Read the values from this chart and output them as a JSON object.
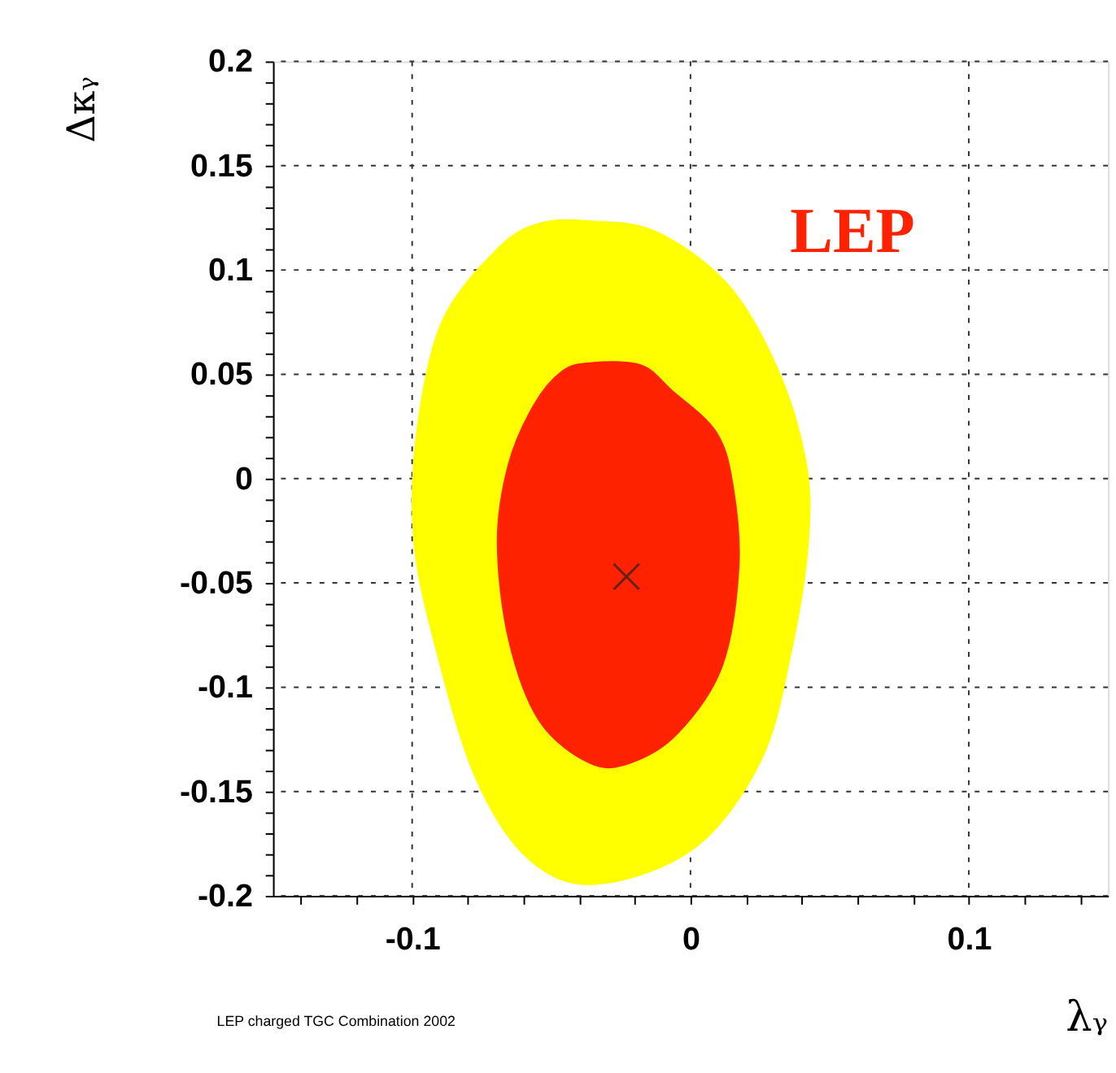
{
  "chart_data": {
    "type": "area",
    "xlabel": "λᵧ",
    "ylabel": "Δκᵧ",
    "annotations": [
      "LEP",
      "LEP charged TGC Combination 2002"
    ],
    "series": [
      {
        "type": "area",
        "color": "#ffff00",
        "x": [
          -0.036,
          -0.0125,
          0.013,
          0.0305,
          0.041,
          0.042,
          0.036,
          0.025,
          0.001,
          -0.034,
          -0.058,
          -0.077,
          -0.091,
          -0.099,
          -0.098,
          -0.089,
          -0.069,
          -0.054
        ],
        "values": [
          0.123,
          0.118,
          0.093,
          0.054,
          0.009,
          -0.03,
          -0.082,
          -0.135,
          -0.177,
          -0.194,
          -0.182,
          -0.143,
          -0.082,
          -0.03,
          0.022,
          0.075,
          0.11,
          0.122
        ]
      },
      {
        "type": "area",
        "color": "#ff2200",
        "x": [
          -0.036,
          -0.018,
          -0.007,
          0.009,
          0.015,
          0.017,
          0.011,
          -0.005,
          -0.022,
          -0.036,
          -0.054,
          -0.065,
          -0.069,
          -0.065,
          -0.056,
          -0.046
        ],
        "values": [
          0.055,
          0.054,
          0.042,
          0.022,
          -0.004,
          -0.043,
          -0.09,
          -0.122,
          -0.136,
          -0.136,
          -0.116,
          -0.077,
          -0.03,
          0.007,
          0.035,
          0.051
        ]
      },
      {
        "type": "scatter",
        "marker": "cross",
        "color": "#222222",
        "x": [
          -0.023
        ],
        "values": [
          -0.047
        ]
      }
    ],
    "xlim": [
      -0.15,
      0.15
    ],
    "xticks": [
      {
        "value": -0.14,
        "label": null
      },
      {
        "value": -0.12,
        "label": null
      },
      -0.1,
      {
        "value": -0.08,
        "label": null
      },
      {
        "value": -0.06,
        "label": null
      },
      {
        "value": -0.04,
        "label": null
      },
      {
        "value": -0.02,
        "label": null
      },
      0,
      {
        "value": 0.02,
        "label": null
      },
      {
        "value": 0.04,
        "label": null
      },
      {
        "value": 0.06,
        "label": null
      },
      {
        "value": 0.08,
        "label": null
      },
      0.1,
      {
        "value": 0.12,
        "label": null
      },
      {
        "value": 0.14,
        "label": null
      }
    ],
    "ylim": [
      -0.2,
      0.2
    ],
    "yticks": [
      -0.2,
      {
        "value": -0.19,
        "label": null
      },
      {
        "value": -0.18,
        "label": null
      },
      {
        "value": -0.17,
        "label": null
      },
      {
        "value": -0.16,
        "label": null
      },
      -0.15,
      {
        "value": -0.14,
        "label": null
      },
      {
        "value": -0.13,
        "label": null
      },
      {
        "value": -0.12,
        "label": null
      },
      {
        "value": -0.11,
        "label": null
      },
      -0.1,
      {
        "value": -0.09,
        "label": null
      },
      {
        "value": -0.08,
        "label": null
      },
      {
        "value": -0.07,
        "label": null
      },
      {
        "value": -0.06,
        "label": null
      },
      -0.05,
      {
        "value": -0.04,
        "label": null
      },
      {
        "value": -0.03,
        "label": null
      },
      {
        "value": -0.02,
        "label": null
      },
      {
        "value": -0.01,
        "label": null
      },
      0,
      {
        "value": 0.01,
        "label": null
      },
      {
        "value": 0.02,
        "label": null
      },
      {
        "value": 0.03,
        "label": null
      },
      {
        "value": 0.04,
        "label": null
      },
      0.05,
      {
        "value": 0.06,
        "label": null
      },
      {
        "value": 0.07,
        "label": null
      },
      {
        "value": 0.08,
        "label": null
      },
      {
        "value": 0.09,
        "label": null
      },
      0.1,
      {
        "value": 0.11,
        "label": null
      },
      {
        "value": 0.12,
        "label": null
      },
      {
        "value": 0.13,
        "label": null
      },
      {
        "value": 0.14,
        "label": null
      },
      0.15,
      {
        "value": 0.16,
        "label": null
      },
      {
        "value": 0.17,
        "label": null
      },
      {
        "value": 0.18,
        "label": null
      },
      {
        "value": 0.19,
        "label": null
      },
      0.2
    ],
    "grid": true
  }
}
